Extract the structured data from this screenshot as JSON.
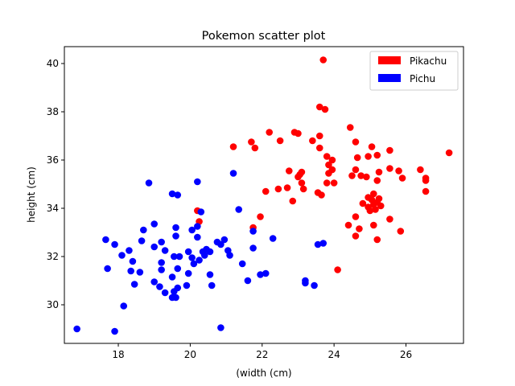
{
  "chart_data": {
    "type": "scatter",
    "title": "Pokemon scatter plot",
    "xlabel": "(width (cm)",
    "ylabel": "height (cm)",
    "xlim": [
      16.5,
      27.6
    ],
    "ylim": [
      28.4,
      40.7
    ],
    "xticks": [
      18,
      20,
      22,
      24,
      26
    ],
    "yticks": [
      30,
      32,
      34,
      36,
      38,
      40
    ],
    "legend_position": "top-right",
    "grid": false,
    "series": [
      {
        "name": "Pikachu",
        "color": "#ff0000",
        "points": [
          [
            23.7,
            40.15
          ],
          [
            23.6,
            38.2
          ],
          [
            23.75,
            38.1
          ],
          [
            24.45,
            37.35
          ],
          [
            22.2,
            37.15
          ],
          [
            22.9,
            37.15
          ],
          [
            23.0,
            37.1
          ],
          [
            23.6,
            37.0
          ],
          [
            22.5,
            36.8
          ],
          [
            23.4,
            36.8
          ],
          [
            24.6,
            36.75
          ],
          [
            21.2,
            36.55
          ],
          [
            21.7,
            36.75
          ],
          [
            21.8,
            36.5
          ],
          [
            23.6,
            36.5
          ],
          [
            25.05,
            36.55
          ],
          [
            25.55,
            36.4
          ],
          [
            27.2,
            36.3
          ],
          [
            23.8,
            36.15
          ],
          [
            24.65,
            36.1
          ],
          [
            24.95,
            36.15
          ],
          [
            25.2,
            36.2
          ],
          [
            23.95,
            36.0
          ],
          [
            23.85,
            35.8
          ],
          [
            25.55,
            35.65
          ],
          [
            25.8,
            35.55
          ],
          [
            26.4,
            35.6
          ],
          [
            22.75,
            35.55
          ],
          [
            23.1,
            35.5
          ],
          [
            23.95,
            35.6
          ],
          [
            24.6,
            35.6
          ],
          [
            25.25,
            35.5
          ],
          [
            23.05,
            35.4
          ],
          [
            23.0,
            35.3
          ],
          [
            23.85,
            35.45
          ],
          [
            24.5,
            35.35
          ],
          [
            24.75,
            35.35
          ],
          [
            24.9,
            35.3
          ],
          [
            25.9,
            35.25
          ],
          [
            26.55,
            35.25
          ],
          [
            26.55,
            35.15
          ],
          [
            25.2,
            35.15
          ],
          [
            23.1,
            35.05
          ],
          [
            23.8,
            35.05
          ],
          [
            24.0,
            35.05
          ],
          [
            22.7,
            34.85
          ],
          [
            22.45,
            34.8
          ],
          [
            23.15,
            34.8
          ],
          [
            22.1,
            34.7
          ],
          [
            23.55,
            34.65
          ],
          [
            23.65,
            34.55
          ],
          [
            26.55,
            34.7
          ],
          [
            25.1,
            34.6
          ],
          [
            24.95,
            34.45
          ],
          [
            25.05,
            34.35
          ],
          [
            25.25,
            34.4
          ],
          [
            22.85,
            34.3
          ],
          [
            24.8,
            34.2
          ],
          [
            25.2,
            34.25
          ],
          [
            25.1,
            34.15
          ],
          [
            24.95,
            34.05
          ],
          [
            25.0,
            33.9
          ],
          [
            25.15,
            33.95
          ],
          [
            25.3,
            34.1
          ],
          [
            20.2,
            33.9
          ],
          [
            21.95,
            33.65
          ],
          [
            24.6,
            33.65
          ],
          [
            25.55,
            33.55
          ],
          [
            20.25,
            33.45
          ],
          [
            24.4,
            33.3
          ],
          [
            25.1,
            33.3
          ],
          [
            21.75,
            33.2
          ],
          [
            24.7,
            33.15
          ],
          [
            25.85,
            33.05
          ],
          [
            24.6,
            32.85
          ],
          [
            25.2,
            32.7
          ],
          [
            24.1,
            31.45
          ]
        ]
      },
      {
        "name": "Pichu",
        "color": "#0000ff",
        "points": [
          [
            18.85,
            35.05
          ],
          [
            20.2,
            35.1
          ],
          [
            21.2,
            35.45
          ],
          [
            19.5,
            34.6
          ],
          [
            19.65,
            34.55
          ],
          [
            21.35,
            33.95
          ],
          [
            20.3,
            33.85
          ],
          [
            19.0,
            33.35
          ],
          [
            18.7,
            33.1
          ],
          [
            19.6,
            33.2
          ],
          [
            20.2,
            33.25
          ],
          [
            20.05,
            33.1
          ],
          [
            21.75,
            33.05
          ],
          [
            17.65,
            32.7
          ],
          [
            18.65,
            32.65
          ],
          [
            19.2,
            32.6
          ],
          [
            19.6,
            32.85
          ],
          [
            20.75,
            32.6
          ],
          [
            20.85,
            32.5
          ],
          [
            20.95,
            32.7
          ],
          [
            20.2,
            32.8
          ],
          [
            22.3,
            32.75
          ],
          [
            17.9,
            32.5
          ],
          [
            19.0,
            32.4
          ],
          [
            20.45,
            32.3
          ],
          [
            21.75,
            32.35
          ],
          [
            23.55,
            32.5
          ],
          [
            23.7,
            32.55
          ],
          [
            18.3,
            32.25
          ],
          [
            19.3,
            32.25
          ],
          [
            19.95,
            32.2
          ],
          [
            20.35,
            32.2
          ],
          [
            20.55,
            32.2
          ],
          [
            21.05,
            32.25
          ],
          [
            18.1,
            32.05
          ],
          [
            19.55,
            32.0
          ],
          [
            19.7,
            32.0
          ],
          [
            20.05,
            31.95
          ],
          [
            20.4,
            32.05
          ],
          [
            21.1,
            32.05
          ],
          [
            20.25,
            31.85
          ],
          [
            18.4,
            31.8
          ],
          [
            19.2,
            31.75
          ],
          [
            20.1,
            31.7
          ],
          [
            21.45,
            31.7
          ],
          [
            17.7,
            31.5
          ],
          [
            18.35,
            31.4
          ],
          [
            18.6,
            31.35
          ],
          [
            19.2,
            31.45
          ],
          [
            19.65,
            31.5
          ],
          [
            19.95,
            31.3
          ],
          [
            20.55,
            31.25
          ],
          [
            19.5,
            31.15
          ],
          [
            22.1,
            31.3
          ],
          [
            21.95,
            31.25
          ],
          [
            21.6,
            31.0
          ],
          [
            19.0,
            30.95
          ],
          [
            18.45,
            30.85
          ],
          [
            19.15,
            30.75
          ],
          [
            19.65,
            30.7
          ],
          [
            19.9,
            30.8
          ],
          [
            20.6,
            30.8
          ],
          [
            23.2,
            31.0
          ],
          [
            23.2,
            30.9
          ],
          [
            23.45,
            30.8
          ],
          [
            19.3,
            30.5
          ],
          [
            19.55,
            30.55
          ],
          [
            19.6,
            30.3
          ],
          [
            19.5,
            30.3
          ],
          [
            18.15,
            29.95
          ],
          [
            16.85,
            29.0
          ],
          [
            17.9,
            28.9
          ],
          [
            20.85,
            29.05
          ]
        ]
      }
    ]
  }
}
